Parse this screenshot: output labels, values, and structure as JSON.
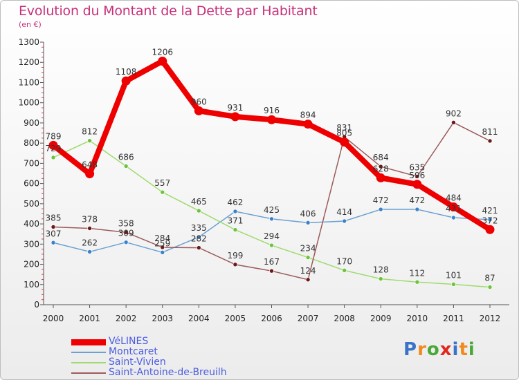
{
  "title": "Evolution du Montant de la Dette par Habitant",
  "subtitle": "(en €)",
  "brand": {
    "letters": [
      "P",
      "r",
      "o",
      "x",
      "i",
      "t",
      "i"
    ],
    "colors": [
      "#3a73c9",
      "#ef8a1e",
      "#49a936",
      "#e2271d",
      "#3a73c9",
      "#ef8a1e",
      "#49a936"
    ]
  },
  "chart_data": {
    "type": "line",
    "title": "Evolution du Montant de la Dette par Habitant",
    "subtitle": "(en €)",
    "x": [
      "2000",
      "2001",
      "2002",
      "2003",
      "2004",
      "2005",
      "2006",
      "2007",
      "2008",
      "2009",
      "2010",
      "2011",
      "2012"
    ],
    "ylim": [
      0,
      1300
    ],
    "yticks": [
      0,
      100,
      200,
      300,
      400,
      500,
      600,
      700,
      800,
      900,
      1000,
      1100,
      1200,
      1300
    ],
    "grid": false,
    "legend_position": "bottom-left",
    "series": [
      {
        "name": "Montcaret",
        "color": "#6aa0d3",
        "dot": "#3b82c8",
        "values": [
          307,
          262,
          309,
          259,
          335,
          462,
          425,
          406,
          414,
          472,
          472,
          431,
          421
        ]
      },
      {
        "name": "Saint-Vivien",
        "color": "#9edb6c",
        "dot": "#6cc43a",
        "values": [
          729,
          812,
          686,
          557,
          465,
          371,
          294,
          234,
          170,
          128,
          112,
          101,
          87
        ]
      },
      {
        "name": "Saint-Antoine-de-Breuilh",
        "color": "#9c5a5a",
        "dot": "#6b1a1a",
        "values": [
          385,
          378,
          358,
          284,
          282,
          199,
          167,
          124,
          831,
          684,
          635,
          902,
          811
        ]
      },
      {
        "name": "VéLINES",
        "color": "#ee0000",
        "dot": "#ee0000",
        "values": [
          789,
          648,
          1108,
          1206,
          960,
          931,
          916,
          894,
          805,
          628,
          596,
          484,
          372
        ]
      }
    ]
  }
}
